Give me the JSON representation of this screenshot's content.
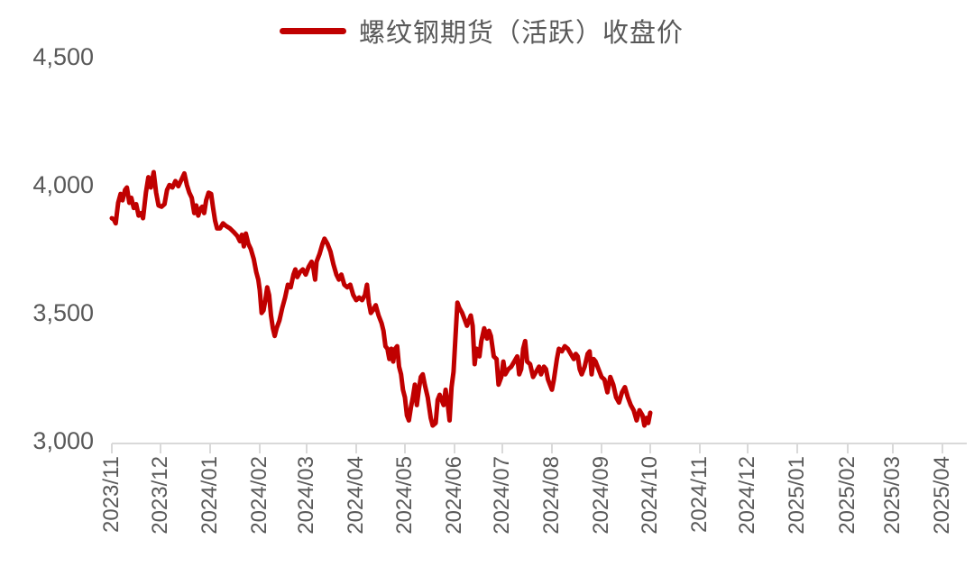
{
  "chart_data": {
    "type": "line",
    "title": "",
    "xlabel": "",
    "ylabel": "",
    "ylim": [
      3000,
      4500
    ],
    "yticks": [
      "4,500",
      "4,000",
      "3,500",
      "3,000"
    ],
    "ytick_values": [
      4500,
      4000,
      3500,
      3000
    ],
    "grid": false,
    "legend_position": "top",
    "categories": [
      "2023/11",
      "2023/12",
      "2024/01",
      "2024/02",
      "2024/03",
      "2024/04",
      "2024/05",
      "2024/06",
      "2024/07",
      "2024/08",
      "2024/09",
      "2024/10",
      "2024/11",
      "2024/12",
      "2025/01",
      "2025/02",
      "2025/03",
      "2025/04"
    ],
    "series": [
      {
        "name": "螺纹钢期货（活跃）收盘价",
        "color": "#c00000",
        "points": [
          [
            0.0,
            3880
          ],
          [
            0.04,
            3875
          ],
          [
            0.08,
            3860
          ],
          [
            0.13,
            3940
          ],
          [
            0.18,
            3975
          ],
          [
            0.22,
            3950
          ],
          [
            0.27,
            3990
          ],
          [
            0.31,
            4000
          ],
          [
            0.36,
            3940
          ],
          [
            0.4,
            3960
          ],
          [
            0.45,
            3920
          ],
          [
            0.5,
            3935
          ],
          [
            0.55,
            3890
          ],
          [
            0.6,
            3900
          ],
          [
            0.64,
            3880
          ],
          [
            0.7,
            3980
          ],
          [
            0.75,
            4040
          ],
          [
            0.8,
            4000
          ],
          [
            0.86,
            4060
          ],
          [
            0.91,
            3980
          ],
          [
            0.96,
            3930
          ],
          [
            1.02,
            3925
          ],
          [
            1.08,
            3935
          ],
          [
            1.13,
            3990
          ],
          [
            1.18,
            4010
          ],
          [
            1.24,
            4000
          ],
          [
            1.3,
            4025
          ],
          [
            1.36,
            4005
          ],
          [
            1.42,
            4030
          ],
          [
            1.48,
            4055
          ],
          [
            1.53,
            4010
          ],
          [
            1.58,
            3980
          ],
          [
            1.63,
            3960
          ],
          [
            1.68,
            3900
          ],
          [
            1.72,
            3930
          ],
          [
            1.76,
            3890
          ],
          [
            1.8,
            3915
          ],
          [
            1.84,
            3925
          ],
          [
            1.88,
            3900
          ],
          [
            1.92,
            3950
          ],
          [
            1.97,
            3980
          ],
          [
            2.02,
            3975
          ],
          [
            2.06,
            3920
          ],
          [
            2.1,
            3870
          ],
          [
            2.14,
            3840
          ],
          [
            2.2,
            3840
          ],
          [
            2.26,
            3860
          ],
          [
            2.32,
            3850
          ],
          [
            2.4,
            3840
          ],
          [
            2.48,
            3825
          ],
          [
            2.55,
            3810
          ],
          [
            2.6,
            3790
          ],
          [
            2.64,
            3815
          ],
          [
            2.68,
            3770
          ],
          [
            2.72,
            3820
          ],
          [
            2.77,
            3780
          ],
          [
            2.82,
            3760
          ],
          [
            2.88,
            3720
          ],
          [
            2.93,
            3670
          ],
          [
            2.97,
            3640
          ],
          [
            3.0,
            3600
          ],
          [
            3.04,
            3510
          ],
          [
            3.08,
            3520
          ],
          [
            3.12,
            3560
          ],
          [
            3.16,
            3610
          ],
          [
            3.2,
            3580
          ],
          [
            3.24,
            3500
          ],
          [
            3.28,
            3450
          ],
          [
            3.32,
            3420
          ],
          [
            3.36,
            3450
          ],
          [
            3.42,
            3480
          ],
          [
            3.48,
            3530
          ],
          [
            3.54,
            3570
          ],
          [
            3.6,
            3620
          ],
          [
            3.66,
            3610
          ],
          [
            3.72,
            3660
          ],
          [
            3.76,
            3680
          ],
          [
            3.8,
            3650
          ],
          [
            3.86,
            3670
          ],
          [
            3.92,
            3680
          ],
          [
            3.98,
            3660
          ],
          [
            4.04,
            3690
          ],
          [
            4.1,
            3710
          ],
          [
            4.14,
            3680
          ],
          [
            4.17,
            3640
          ],
          [
            4.2,
            3710
          ],
          [
            4.26,
            3740
          ],
          [
            4.32,
            3780
          ],
          [
            4.36,
            3800
          ],
          [
            4.42,
            3780
          ],
          [
            4.48,
            3750
          ],
          [
            4.54,
            3700
          ],
          [
            4.6,
            3660
          ],
          [
            4.65,
            3640
          ],
          [
            4.7,
            3660
          ],
          [
            4.76,
            3620
          ],
          [
            4.82,
            3610
          ],
          [
            4.88,
            3620
          ],
          [
            4.94,
            3580
          ],
          [
            5.0,
            3560
          ],
          [
            5.06,
            3570
          ],
          [
            5.12,
            3560
          ],
          [
            5.18,
            3580
          ],
          [
            5.22,
            3620
          ],
          [
            5.26,
            3550
          ],
          [
            5.3,
            3510
          ],
          [
            5.34,
            3520
          ],
          [
            5.4,
            3540
          ],
          [
            5.46,
            3500
          ],
          [
            5.52,
            3470
          ],
          [
            5.56,
            3440
          ],
          [
            5.6,
            3380
          ],
          [
            5.64,
            3370
          ],
          [
            5.68,
            3330
          ],
          [
            5.72,
            3370
          ],
          [
            5.76,
            3320
          ],
          [
            5.8,
            3370
          ],
          [
            5.84,
            3380
          ],
          [
            5.88,
            3300
          ],
          [
            5.92,
            3270
          ],
          [
            5.96,
            3210
          ],
          [
            6.0,
            3180
          ],
          [
            6.04,
            3110
          ],
          [
            6.08,
            3090
          ],
          [
            6.12,
            3140
          ],
          [
            6.16,
            3180
          ],
          [
            6.2,
            3230
          ],
          [
            6.24,
            3150
          ],
          [
            6.28,
            3210
          ],
          [
            6.32,
            3260
          ],
          [
            6.36,
            3270
          ],
          [
            6.4,
            3230
          ],
          [
            6.46,
            3180
          ],
          [
            6.52,
            3100
          ],
          [
            6.56,
            3070
          ],
          [
            6.62,
            3080
          ],
          [
            6.66,
            3170
          ],
          [
            6.7,
            3190
          ],
          [
            6.74,
            3170
          ],
          [
            6.78,
            3150
          ],
          [
            6.82,
            3210
          ],
          [
            6.86,
            3160
          ],
          [
            6.9,
            3090
          ],
          [
            6.94,
            3220
          ],
          [
            6.98,
            3280
          ],
          [
            7.02,
            3420
          ],
          [
            7.06,
            3550
          ],
          [
            7.1,
            3530
          ],
          [
            7.16,
            3510
          ],
          [
            7.22,
            3480
          ],
          [
            7.26,
            3460
          ],
          [
            7.3,
            3480
          ],
          [
            7.34,
            3500
          ],
          [
            7.38,
            3460
          ],
          [
            7.42,
            3310
          ],
          [
            7.46,
            3370
          ],
          [
            7.52,
            3340
          ],
          [
            7.56,
            3400
          ],
          [
            7.62,
            3450
          ],
          [
            7.68,
            3410
          ],
          [
            7.72,
            3440
          ],
          [
            7.76,
            3420
          ],
          [
            7.82,
            3340
          ],
          [
            7.88,
            3330
          ],
          [
            7.92,
            3230
          ],
          [
            7.98,
            3260
          ],
          [
            8.02,
            3320
          ],
          [
            8.06,
            3270
          ],
          [
            8.12,
            3290
          ],
          [
            8.18,
            3300
          ],
          [
            8.24,
            3320
          ],
          [
            8.3,
            3340
          ],
          [
            8.34,
            3270
          ],
          [
            8.38,
            3290
          ],
          [
            8.42,
            3370
          ],
          [
            8.46,
            3400
          ],
          [
            8.5,
            3320
          ],
          [
            8.56,
            3310
          ],
          [
            8.62,
            3260
          ],
          [
            8.68,
            3280
          ],
          [
            8.74,
            3300
          ],
          [
            8.78,
            3270
          ],
          [
            8.84,
            3300
          ],
          [
            8.88,
            3290
          ],
          [
            8.92,
            3250
          ],
          [
            8.96,
            3230
          ],
          [
            9.0,
            3210
          ],
          [
            9.04,
            3250
          ],
          [
            9.1,
            3330
          ],
          [
            9.14,
            3370
          ],
          [
            9.2,
            3360
          ],
          [
            9.26,
            3380
          ],
          [
            9.32,
            3370
          ],
          [
            9.38,
            3350
          ],
          [
            9.44,
            3330
          ],
          [
            9.48,
            3350
          ],
          [
            9.52,
            3340
          ],
          [
            9.56,
            3290
          ],
          [
            9.6,
            3270
          ],
          [
            9.66,
            3300
          ],
          [
            9.72,
            3350
          ],
          [
            9.76,
            3360
          ],
          [
            9.8,
            3270
          ],
          [
            9.84,
            3330
          ],
          [
            9.88,
            3320
          ],
          [
            9.94,
            3290
          ],
          [
            10.0,
            3260
          ],
          [
            10.06,
            3250
          ],
          [
            10.12,
            3200
          ],
          [
            10.18,
            3260
          ],
          [
            10.24,
            3230
          ],
          [
            10.3,
            3180
          ],
          [
            10.36,
            3160
          ],
          [
            10.42,
            3200
          ],
          [
            10.48,
            3220
          ],
          [
            10.54,
            3180
          ],
          [
            10.6,
            3150
          ],
          [
            10.66,
            3130
          ],
          [
            10.72,
            3090
          ],
          [
            10.78,
            3130
          ],
          [
            10.84,
            3110
          ],
          [
            10.88,
            3070
          ],
          [
            10.92,
            3100
          ],
          [
            10.96,
            3080
          ],
          [
            11.0,
            3120
          ]
        ]
      }
    ]
  },
  "legend": {
    "label": "螺纹钢期货（活跃）收盘价",
    "color": "#c00000"
  },
  "axes": {
    "y_labels": [
      "4,500",
      "4,000",
      "3,500",
      "3,000"
    ],
    "x_labels": [
      "2023/11",
      "2023/12",
      "2024/01",
      "2024/02",
      "2024/03",
      "2024/04",
      "2024/05",
      "2024/06",
      "2024/07",
      "2024/08",
      "2024/09",
      "2024/10",
      "2024/11",
      "2024/12",
      "2025/01",
      "2025/02",
      "2025/03",
      "2025/04"
    ]
  }
}
